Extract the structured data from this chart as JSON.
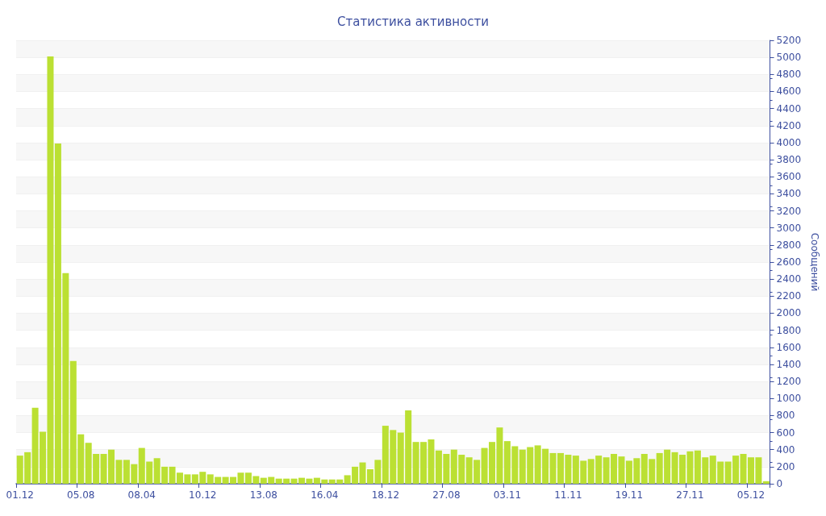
{
  "chart_data": {
    "type": "bar",
    "title": "Статистика активности",
    "ylabel": "Сообщений",
    "categories": [
      "01.12",
      null,
      null,
      null,
      null,
      null,
      null,
      null,
      "05.08",
      null,
      null,
      null,
      null,
      null,
      null,
      null,
      "08.04",
      null,
      null,
      null,
      null,
      null,
      null,
      null,
      "10.12",
      null,
      null,
      null,
      null,
      null,
      null,
      null,
      "13.08",
      null,
      null,
      null,
      null,
      null,
      null,
      null,
      "16.04",
      null,
      null,
      null,
      null,
      null,
      null,
      null,
      "18.12",
      null,
      null,
      null,
      null,
      null,
      null,
      null,
      "27.08",
      null,
      null,
      null,
      null,
      null,
      null,
      null,
      "03.11",
      null,
      null,
      null,
      null,
      null,
      null,
      null,
      "11.11",
      null,
      null,
      null,
      null,
      null,
      null,
      null,
      "19.11",
      null,
      null,
      null,
      null,
      null,
      null,
      null,
      "27.11",
      null,
      null,
      null,
      null,
      null,
      null,
      null,
      "05.12",
      null,
      null
    ],
    "values": [
      330,
      370,
      890,
      610,
      5010,
      3990,
      2470,
      1440,
      580,
      480,
      350,
      350,
      400,
      280,
      280,
      230,
      420,
      260,
      300,
      200,
      200,
      130,
      110,
      110,
      140,
      110,
      80,
      80,
      80,
      130,
      130,
      90,
      70,
      80,
      60,
      60,
      60,
      70,
      60,
      70,
      50,
      50,
      50,
      100,
      200,
      250,
      170,
      280,
      680,
      630,
      600,
      860,
      490,
      490,
      520,
      390,
      350,
      400,
      340,
      310,
      280,
      420,
      490,
      660,
      500,
      440,
      400,
      430,
      450,
      410,
      360,
      360,
      340,
      330,
      270,
      290,
      330,
      310,
      350,
      320,
      270,
      300,
      350,
      290,
      360,
      400,
      370,
      340,
      380,
      390,
      310,
      330,
      260,
      260,
      330,
      350,
      310,
      310,
      30
    ],
    "color": "#bbe033",
    "ylim": [
      0,
      5200
    ],
    "yticks": [
      0,
      200,
      400,
      600,
      800,
      1000,
      1200,
      1400,
      1600,
      1800,
      2000,
      2200,
      2400,
      2600,
      2800,
      3000,
      3200,
      3400,
      3600,
      3800,
      4000,
      4200,
      4400,
      4600,
      4800,
      5000,
      5200
    ],
    "grid": "y"
  }
}
